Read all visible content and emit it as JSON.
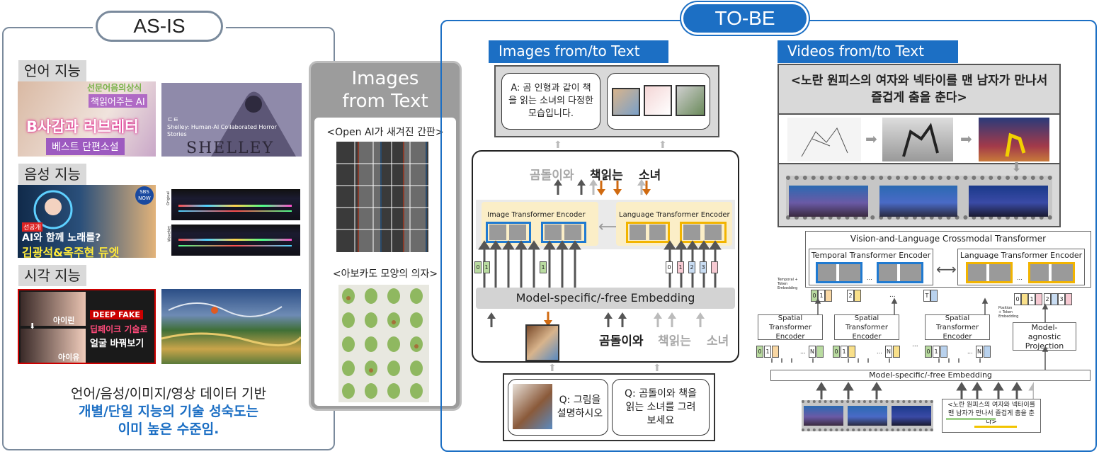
{
  "asis": {
    "title": "AS-IS",
    "sections": [
      {
        "label": "언어 지능"
      },
      {
        "label": "음성 지능"
      },
      {
        "label": "시각 지능"
      }
    ],
    "lang_thumb1": {
      "top": "선문어음의상식",
      "mid": "책읽어주는 AI",
      "main": "B사감과 러브레터",
      "bottom": "베스트 단편소설"
    },
    "lang_thumb2": {
      "logo": "ㄷㅌ",
      "caption": "Shelley: Human-AI Collaborated Horror Stories",
      "word": "SHELLEY"
    },
    "voice_thumb1": {
      "badge": "SBS NOW",
      "tag": "선공개",
      "line1": "AI와 함께 노래를?",
      "line2": "김광석&옥주현 듀엣"
    },
    "voice_thumb2": {
      "label1": "Original",
      "label2": "WaveNet"
    },
    "vision_thumb1": {
      "name1": "아이린",
      "name2": "아이유",
      "banner": "DEEP FAKE",
      "line1": "딥페이크 기술로",
      "line2": "얼굴 바꿔보기"
    },
    "summary": {
      "line1": "언어/음성/이미지/영상 데이터 기반",
      "line2": "개별/단일 지능의 기술 성숙도는",
      "line3": "이미 높은 수준임."
    }
  },
  "middle": {
    "title_line1": "Images",
    "title_line2": "from Text",
    "caption1": "<Open AI가 새겨진 간판>",
    "caption2": "<아보카도 모양의 의자>"
  },
  "tobe": {
    "title": "TO-BE",
    "images_tab": "Images from/to Text",
    "videos_tab": "Videos from/to Text",
    "answer_text": "A: 곰 인형과 같이 책을 읽는 소녀의 다정한 모습입니다.",
    "words_top": [
      "곰돌이와",
      "책읽는",
      "소녀"
    ],
    "image_encoder": "Image Transformer Encoder",
    "language_encoder": "Language Transformer Encoder",
    "embedding": "Model-specific/-free Embedding",
    "words_bottom": [
      "곰돌이와",
      "책읽는",
      "소녀"
    ],
    "q1": "Q: 그림을 설명하시오",
    "q2": "Q: 곰돌이와 책을 읽는 소녀를 그려보세요",
    "video_caption": "<노란 원피스의 여자와 넥타이를 맨 남자가 만나서 즐겁게 춤을 춘다>",
    "vl_title": "Vision-and-Language Crossmodal Transformer",
    "temporal_encoder": "Temporal Transformer Encoder",
    "language_encoder2": "Language Transformer Encoder",
    "spatial": "Spatial Transformer Encoder",
    "projection": "Model-agnostic Projection",
    "embedding2": "Model-specific/-free Embedding",
    "temporal_embed_label": "Temporal + Token Embedding",
    "position_embed_label": "Position + Token Embedding",
    "input_caption": "<노란 원피스의 여자와 넥타이를 맨 남자가 만나서 즐겁게 춤을 춘다>",
    "tokens_temporal": [
      "0",
      "1",
      "2",
      "T"
    ],
    "tokens_lang": [
      "0",
      "1",
      "2",
      "3"
    ],
    "dots": "...",
    "n_label": "N"
  },
  "colors": {
    "blue": "#1c6fc4",
    "orange": "#d06a10",
    "yellow": "#f2b400",
    "gray": "#9a9a9a"
  }
}
